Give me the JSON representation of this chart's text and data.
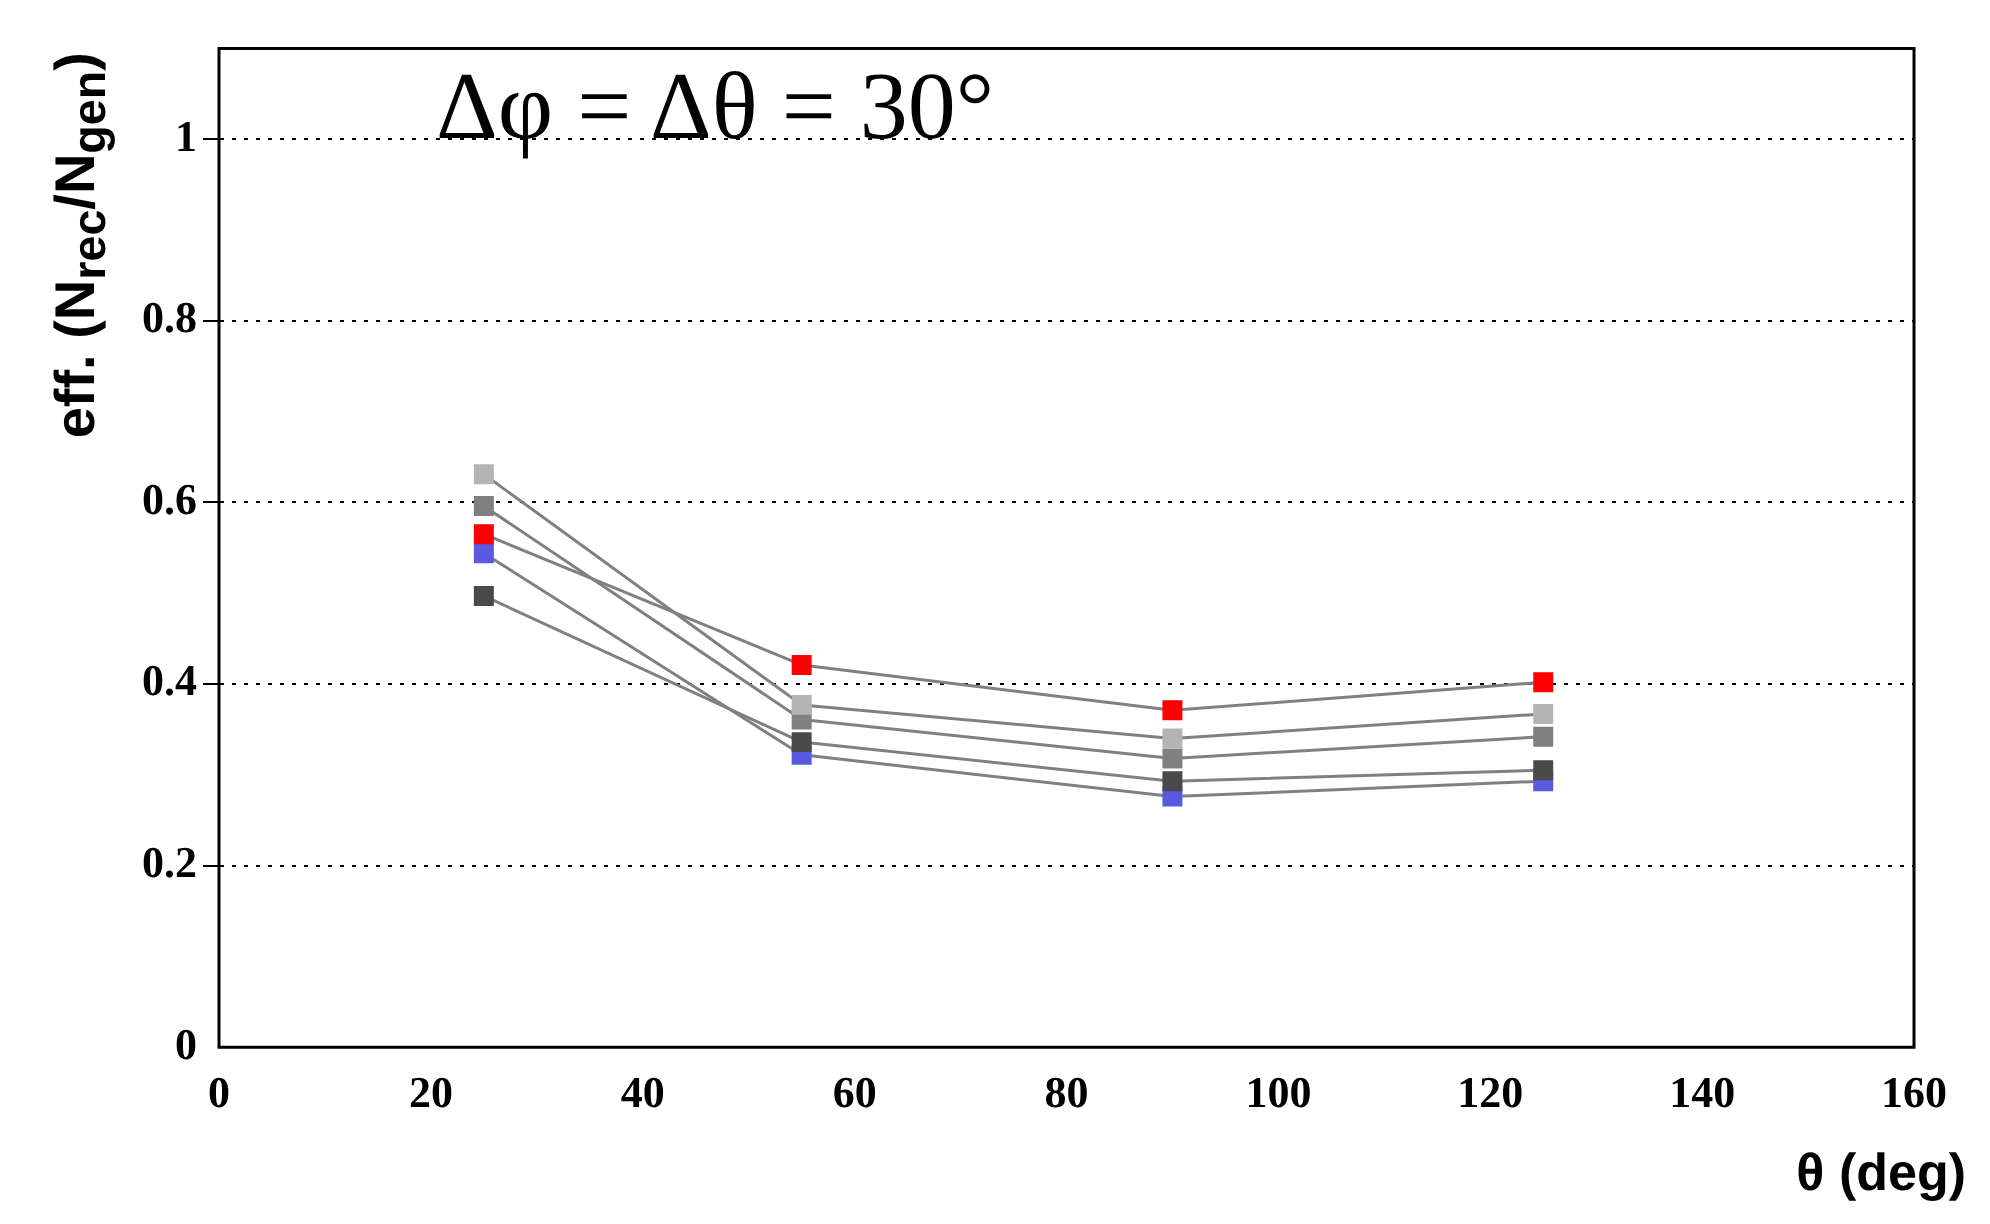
{
  "chart_data": {
    "type": "line",
    "xlabel": "θ (deg)",
    "ylabel": "eff. (N$_{rec}$/N$_{gen}$)",
    "annotations": [
      "Δφ = Δθ = 30°"
    ],
    "x": [
      25,
      55,
      90,
      125
    ],
    "xlim": [
      0,
      160
    ],
    "xticks": [
      0,
      20,
      40,
      60,
      80,
      100,
      120,
      140,
      160
    ],
    "ylim": [
      0,
      1.1
    ],
    "yticks": [
      0,
      0.2,
      0.4,
      0.6,
      0.8,
      1
    ],
    "grid": "y",
    "legend": false,
    "marker": "square",
    "line_style": "solid",
    "series": [
      {
        "color": "#5a5ae0",
        "values": [
          0.544,
          0.322,
          0.276,
          0.293
        ]
      },
      {
        "color": "#4a4a4a",
        "values": [
          0.497,
          0.336,
          0.293,
          0.305
        ]
      },
      {
        "color": "#808080",
        "values": [
          0.596,
          0.361,
          0.318,
          0.342
        ]
      },
      {
        "color": "#b4b4b4",
        "values": [
          0.631,
          0.377,
          0.34,
          0.367
        ]
      },
      {
        "color": "#ff0000",
        "values": [
          0.565,
          0.421,
          0.371,
          0.402
        ]
      }
    ]
  }
}
